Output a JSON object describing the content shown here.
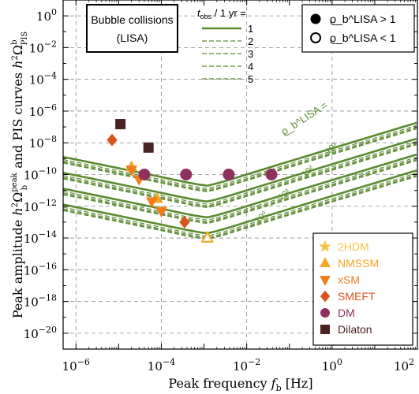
{
  "colors": {
    "curve": "#5a8a2e",
    "grid": "#8a8a8a",
    "twohdm": "#f5c542",
    "nmssm": "#f5a623",
    "xsm": "#f07c1b",
    "smeft": "#d9531e",
    "dm": "#8e3060",
    "dilaton": "#4a2222"
  },
  "chart_data": {
    "type": "scatter",
    "x_scale": "log",
    "y_scale": "log",
    "xlim": [
      5e-07,
      100
    ],
    "ylim": [
      1e-21,
      10.0
    ],
    "x_ticks": [
      {
        "value": 1e-06,
        "base": "10",
        "exp": "−6"
      },
      {
        "value": 0.0001,
        "base": "10",
        "exp": "−4"
      },
      {
        "value": 0.01,
        "base": "10",
        "exp": "−2"
      },
      {
        "value": 1,
        "base": "10",
        "exp": "0"
      },
      {
        "value": 100,
        "base": "10",
        "exp": "2"
      }
    ],
    "y_ticks": [
      {
        "value": 1,
        "base": "10",
        "exp": "0"
      },
      {
        "value": 0.01,
        "base": "10",
        "exp": "−2"
      },
      {
        "value": 0.0001,
        "base": "10",
        "exp": "−4"
      },
      {
        "value": 1e-06,
        "base": "10",
        "exp": "−6"
      },
      {
        "value": 1e-08,
        "base": "10",
        "exp": "−8"
      },
      {
        "value": 1e-10,
        "base": "10",
        "exp": "−10"
      },
      {
        "value": 1e-12,
        "base": "10",
        "exp": "−12"
      },
      {
        "value": 1e-14,
        "base": "10",
        "exp": "−14"
      },
      {
        "value": 1e-16,
        "base": "10",
        "exp": "−16"
      },
      {
        "value": 1e-18,
        "base": "10",
        "exp": "−18"
      },
      {
        "value": 1e-20,
        "base": "10",
        "exp": "−20"
      }
    ],
    "grid": true,
    "xlabel": "Peak frequency f_b [Hz]",
    "ylabel": "Peak amplitude h²Ω_b^peak and PIS curves h²Ω_PIS^b",
    "title_box": [
      "Bubble collisions",
      "(LISA)"
    ],
    "tobs_header": "t_obs / 1 yr =",
    "tobs_labels": [
      "1",
      "2",
      "3",
      "4",
      "5"
    ],
    "snr_legend": [
      {
        "marker": "filled",
        "label": "ϱ_b^LISA > 1"
      },
      {
        "marker": "open",
        "label": "ϱ_b^LISA < 1"
      }
    ],
    "snr_curve_label": "ϱ_b^LISA =",
    "pis_families": [
      {
        "snr": 1,
        "label": "10⁰",
        "min_log": -13.7
      },
      {
        "snr": 10,
        "label": "10¹",
        "min_log": -12.7
      },
      {
        "snr": 100,
        "label": "10²",
        "min_log": -11.7
      },
      {
        "snr": 1000,
        "label": "10³",
        "min_log": -10.7
      }
    ],
    "pis_min_freq": 0.0012,
    "series": [
      {
        "name": "2HDM",
        "marker": "star",
        "color_key": "twohdm",
        "points": []
      },
      {
        "name": "NMSSM",
        "marker": "triangle-up",
        "color_key": "nmssm",
        "points": [
          {
            "x": 2e-05,
            "y": 3e-10,
            "filled": true
          },
          {
            "x": 8e-05,
            "y": 3e-12,
            "filled": true
          },
          {
            "x": 0.0012,
            "y": 1e-14,
            "filled": false
          }
        ]
      },
      {
        "name": "xSM",
        "marker": "triangle-down",
        "color_key": "xsm",
        "points": [
          {
            "x": 2e-05,
            "y": 2e-10,
            "filled": true
          },
          {
            "x": 3e-05,
            "y": 5e-11,
            "filled": true
          },
          {
            "x": 6e-05,
            "y": 2e-12,
            "filled": true
          },
          {
            "x": 0.0001,
            "y": 5e-13,
            "filled": true
          }
        ]
      },
      {
        "name": "SMEFT",
        "marker": "diamond",
        "color_key": "smeft",
        "points": [
          {
            "x": 7e-06,
            "y": 1.5e-08,
            "filled": true
          },
          {
            "x": 0.00035,
            "y": 1e-13,
            "filled": true
          }
        ]
      },
      {
        "name": "DM",
        "marker": "circle",
        "color_key": "dm",
        "points": [
          {
            "x": 4e-05,
            "y": 1e-10,
            "filled": true
          },
          {
            "x": 0.00038,
            "y": 1e-10,
            "filled": true
          },
          {
            "x": 0.0038,
            "y": 1e-10,
            "filled": true
          },
          {
            "x": 0.038,
            "y": 1e-10,
            "filled": true
          }
        ]
      },
      {
        "name": "Dilaton",
        "marker": "square",
        "color_key": "dilaton",
        "points": [
          {
            "x": 1.1e-05,
            "y": 1.5e-07,
            "filled": true
          },
          {
            "x": 5e-05,
            "y": 5e-09,
            "filled": true
          }
        ]
      }
    ]
  }
}
